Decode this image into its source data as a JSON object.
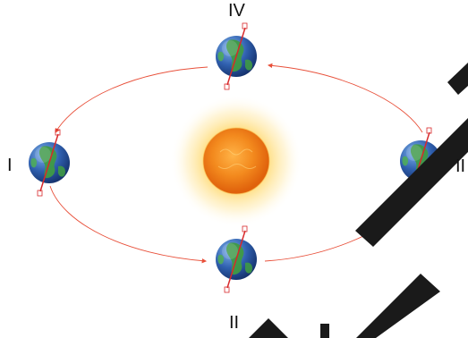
{
  "labels": {
    "top": "IV",
    "left": "I",
    "right": "II",
    "bottom": "II"
  },
  "colors": {
    "orbit": "#e8503a",
    "sun_core": "#f07a12",
    "sun_glow": "#ffd86b",
    "ocean": "#2f5fae",
    "land": "#3f9a45",
    "axis": "#d8282a",
    "redaction": "#1a1a1a"
  },
  "icons": {
    "sun": "sun-icon",
    "earth": "earth-globe-icon"
  }
}
